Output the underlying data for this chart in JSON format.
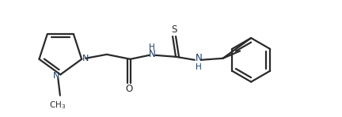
{
  "background_color": "#ffffff",
  "line_color": "#2a2a2a",
  "line_width": 1.6,
  "figsize": [
    4.32,
    1.48
  ],
  "dpi": 100,
  "xlim": [
    0,
    4.32
  ],
  "ylim": [
    0,
    1.48
  ]
}
